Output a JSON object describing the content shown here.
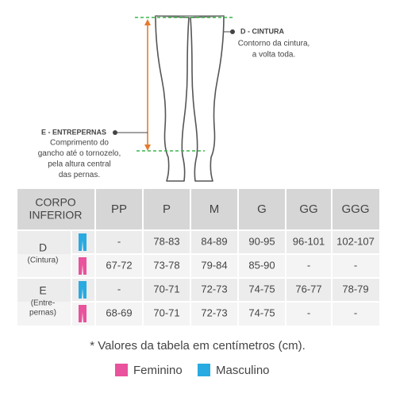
{
  "annotations": {
    "d": {
      "title": "D - CINTURA",
      "lines": [
        "Contorno da cintura,",
        "a volta toda."
      ]
    },
    "e": {
      "title": "E - ENTREPERNAS",
      "lines": [
        "Comprimento do",
        "gancho até o tornozelo,",
        "pela altura central",
        "das pernas."
      ]
    }
  },
  "table": {
    "corner": [
      "CORPO",
      "INFERIOR"
    ],
    "sizes": [
      "PP",
      "P",
      "M",
      "G",
      "GG",
      "GGG"
    ],
    "groups": [
      {
        "label": "D",
        "sublabel": [
          "(Cintura)"
        ],
        "rows": [
          {
            "color": "#29aae1",
            "values": [
              "-",
              "78-83",
              "84-89",
              "90-95",
              "96-101",
              "102-107"
            ]
          },
          {
            "color": "#e9529c",
            "values": [
              "67-72",
              "73-78",
              "79-84",
              "85-90",
              "-",
              "-"
            ]
          }
        ]
      },
      {
        "label": "E",
        "sublabel": [
          "(Entre-",
          "pernas)"
        ],
        "rows": [
          {
            "color": "#29aae1",
            "values": [
              "-",
              "70-71",
              "72-73",
              "74-75",
              "76-77",
              "78-79"
            ]
          },
          {
            "color": "#e9529c",
            "values": [
              "68-69",
              "70-71",
              "72-73",
              "74-75",
              "-",
              "-"
            ]
          }
        ]
      }
    ]
  },
  "footnote": "* Valores da tabela em centímetros (cm).",
  "legend": [
    {
      "label": "Feminino",
      "color": "#e9529c"
    },
    {
      "label": "Masculino",
      "color": "#29aae1"
    }
  ]
}
